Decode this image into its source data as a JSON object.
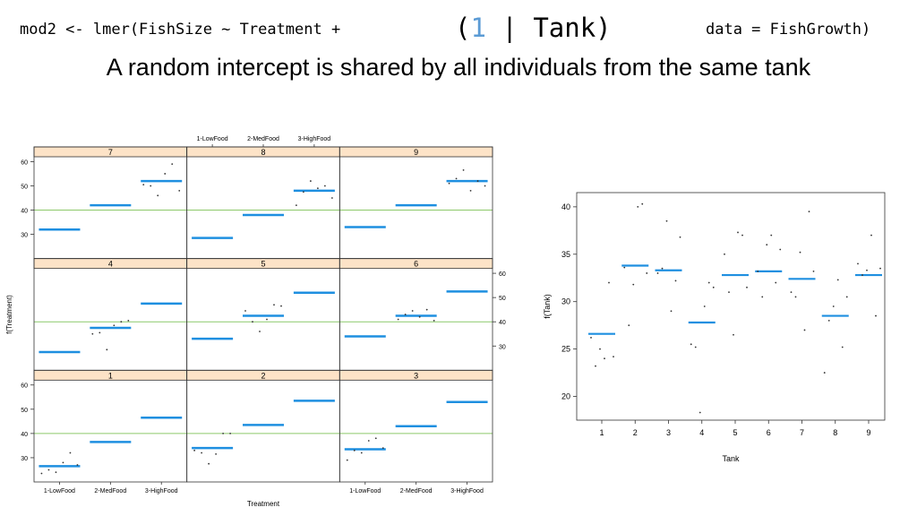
{
  "header": {
    "code_left": "mod2 <- lmer(FishSize ~ Treatment +",
    "code_mid_open": "(",
    "code_mid_one": "1",
    "code_mid_rest": " | Tank)",
    "code_right": "data = FishGrowth)",
    "subtitle": "A random intercept is shared by all individuals from the same tank"
  },
  "colors": {
    "fit": "#1e8fe0",
    "ref": "#8cc96a",
    "strip": "#fde3c7",
    "points": "#333333"
  },
  "chart_data": [
    {
      "type": "scatter",
      "title": "",
      "xlabel": "Treatment",
      "ylabel": "f(Treatment)",
      "top_axis_labels": [
        "1-LowFood",
        "2-MedFood",
        "3-HighFood"
      ],
      "categories": [
        "1-LowFood",
        "2-MedFood",
        "3-HighFood"
      ],
      "ylim": [
        20,
        62
      ],
      "yticks": [
        30,
        40,
        50,
        60
      ],
      "reference_line": 40,
      "panels": [
        {
          "label": "7",
          "fitted": [
            32,
            42,
            52
          ],
          "points": [
            [
              3,
              50.5
            ],
            [
              3,
              50
            ],
            [
              3,
              46
            ],
            [
              3,
              55
            ],
            [
              3,
              59
            ],
            [
              3,
              48
            ]
          ]
        },
        {
          "label": "8",
          "fitted": [
            28.5,
            38,
            48
          ],
          "points": [
            [
              3,
              42
            ],
            [
              3,
              47.5
            ],
            [
              3,
              52
            ],
            [
              3,
              49
            ],
            [
              3,
              50
            ],
            [
              3,
              45
            ]
          ]
        },
        {
          "label": "9",
          "fitted": [
            33,
            42,
            52
          ],
          "points": [
            [
              3,
              51
            ],
            [
              3,
              53
            ],
            [
              3,
              56.5
            ],
            [
              3,
              48
            ],
            [
              3,
              52
            ],
            [
              3,
              50
            ]
          ]
        },
        {
          "label": "4",
          "fitted": [
            27.5,
            37.5,
            47.5
          ],
          "points": [
            [
              2,
              35
            ],
            [
              2,
              35.5
            ],
            [
              2,
              28.5
            ],
            [
              2,
              38.5
            ],
            [
              2,
              40
            ],
            [
              2,
              40.5
            ]
          ]
        },
        {
          "label": "5",
          "fitted": [
            33,
            42.5,
            52
          ],
          "points": [
            [
              2,
              44.5
            ],
            [
              2,
              40
            ],
            [
              2,
              36
            ],
            [
              2,
              41
            ],
            [
              2,
              47
            ],
            [
              2,
              46.5
            ]
          ]
        },
        {
          "label": "6",
          "fitted": [
            34,
            42.5,
            52.5
          ],
          "points": [
            [
              2,
              41
            ],
            [
              2,
              43
            ],
            [
              2,
              44.5
            ],
            [
              2,
              42
            ],
            [
              2,
              45
            ],
            [
              2,
              40.5
            ]
          ]
        },
        {
          "label": "1",
          "fitted": [
            26.5,
            36.5,
            46.5
          ],
          "points": [
            [
              1,
              23.5
            ],
            [
              1,
              25
            ],
            [
              1,
              24
            ],
            [
              1,
              28
            ],
            [
              1,
              32
            ],
            [
              1,
              27
            ]
          ]
        },
        {
          "label": "2",
          "fitted": [
            34,
            43.5,
            53.5
          ],
          "points": [
            [
              1,
              33
            ],
            [
              1,
              32
            ],
            [
              1,
              27.5
            ],
            [
              1,
              31.5
            ],
            [
              1,
              40
            ],
            [
              1,
              40
            ]
          ]
        },
        {
          "label": "3",
          "fitted": [
            33.5,
            43,
            53
          ],
          "points": [
            [
              1,
              29
            ],
            [
              1,
              33
            ],
            [
              1,
              32
            ],
            [
              1,
              37
            ],
            [
              1,
              38
            ],
            [
              1,
              34
            ]
          ]
        }
      ]
    },
    {
      "type": "scatter",
      "title": "",
      "xlabel": "Tank",
      "ylabel": "f(Tank)",
      "categories": [
        "1",
        "2",
        "3",
        "4",
        "5",
        "6",
        "7",
        "8",
        "9"
      ],
      "ylim": [
        17.5,
        41.5
      ],
      "yticks": [
        20,
        25,
        30,
        35,
        40
      ],
      "tank_means": [
        26.6,
        33.8,
        33.3,
        27.8,
        32.8,
        33.2,
        32.4,
        28.5,
        32.8
      ],
      "points": [
        [
          1,
          26.2
        ],
        [
          1,
          23.2
        ],
        [
          1,
          25
        ],
        [
          1,
          24
        ],
        [
          1,
          32
        ],
        [
          1,
          24.2
        ],
        [
          2,
          33.6
        ],
        [
          2,
          27.5
        ],
        [
          2,
          31.8
        ],
        [
          2,
          40
        ],
        [
          2,
          40.3
        ],
        [
          2,
          33
        ],
        [
          3,
          33
        ],
        [
          3,
          33.5
        ],
        [
          3,
          38.5
        ],
        [
          3,
          29
        ],
        [
          3,
          32.2
        ],
        [
          3,
          36.8
        ],
        [
          4,
          25.5
        ],
        [
          4,
          25.2
        ],
        [
          4,
          18.3
        ],
        [
          4,
          29.5
        ],
        [
          4,
          32
        ],
        [
          4,
          31.5
        ],
        [
          5,
          35
        ],
        [
          5,
          31
        ],
        [
          5,
          26.5
        ],
        [
          5,
          37.3
        ],
        [
          5,
          37
        ],
        [
          5,
          31.5
        ],
        [
          6,
          33.2
        ],
        [
          6,
          30.5
        ],
        [
          6,
          36
        ],
        [
          6,
          37
        ],
        [
          6,
          32
        ],
        [
          6,
          35.5
        ],
        [
          7,
          31
        ],
        [
          7,
          30.5
        ],
        [
          7,
          35.2
        ],
        [
          7,
          27
        ],
        [
          7,
          39.5
        ],
        [
          7,
          33.2
        ],
        [
          8,
          22.5
        ],
        [
          8,
          28
        ],
        [
          8,
          29.5
        ],
        [
          8,
          32.3
        ],
        [
          8,
          25.2
        ],
        [
          8,
          30.5
        ],
        [
          9,
          34
        ],
        [
          9,
          32.8
        ],
        [
          9,
          33.3
        ],
        [
          9,
          37
        ],
        [
          9,
          28.5
        ],
        [
          9,
          33.5
        ]
      ]
    }
  ]
}
